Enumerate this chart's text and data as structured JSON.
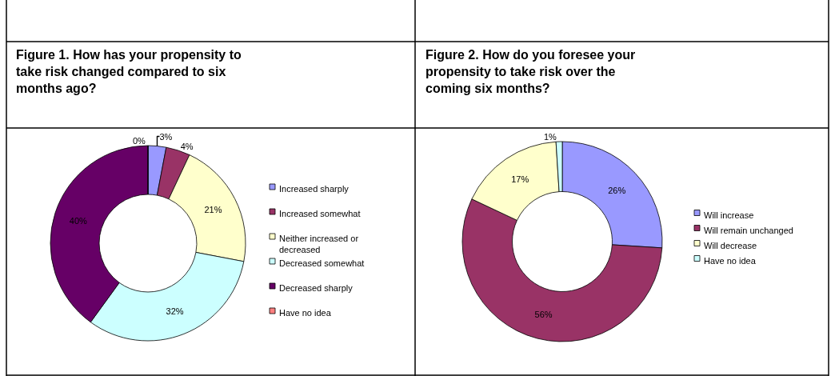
{
  "chart_data": [
    {
      "type": "donut",
      "title": "Figure 1. How has your propensity to take risk changed compared to six months ago?",
      "categories": [
        "Increased sharply",
        "Increased somewhat",
        "Neither increased or decreased",
        "Decreased somewhat",
        "Decreased sharply",
        "Have no idea"
      ],
      "values": [
        3,
        4,
        21,
        32,
        40,
        0
      ],
      "value_labels": [
        "3%",
        "4%",
        "21%",
        "32%",
        "40%",
        "0%"
      ],
      "colors": [
        "#9999ff",
        "#993366",
        "#ffffcc",
        "#ccffff",
        "#660066",
        "#ff8080"
      ],
      "legend": "right"
    },
    {
      "type": "donut",
      "title": "Figure 2. How do you foresee your propensity to take risk over the coming six months?",
      "categories": [
        "Will increase",
        "Will remain unchanged",
        "Will decrease",
        "Have no idea"
      ],
      "values": [
        26,
        56,
        17,
        1
      ],
      "value_labels": [
        "26%",
        "56%",
        "17%",
        "1%"
      ],
      "colors": [
        "#9999ff",
        "#993366",
        "#ffffcc",
        "#ccffff"
      ],
      "legend": "right"
    }
  ]
}
